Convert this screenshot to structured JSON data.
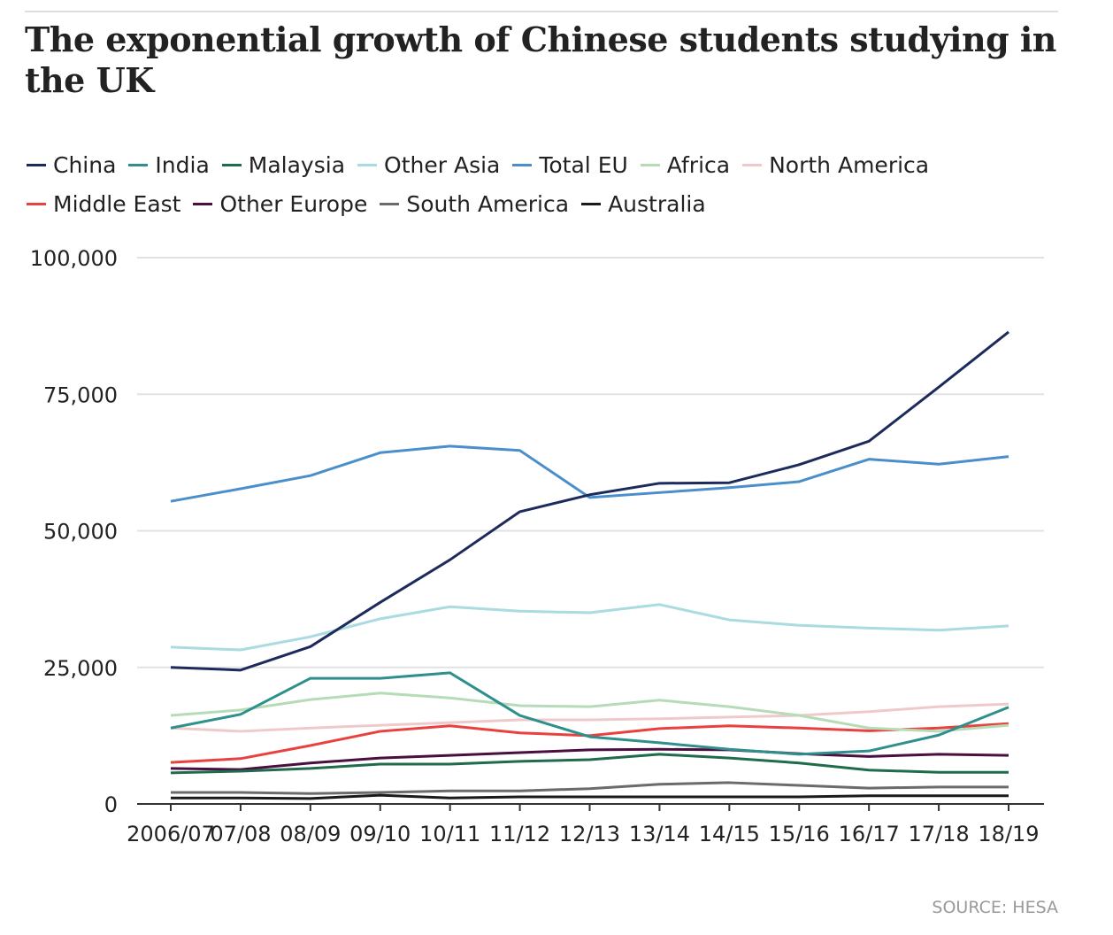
{
  "title": "The exponential growth of Chinese students studying in the UK",
  "source": "SOURCE: HESA",
  "chart_data": {
    "type": "line",
    "title": "The exponential growth of Chinese students studying in the UK",
    "xlabel": "",
    "ylabel": "",
    "categories": [
      "2006/07",
      "07/08",
      "08/09",
      "09/10",
      "10/11",
      "11/12",
      "12/13",
      "13/14",
      "14/15",
      "15/16",
      "16/17",
      "17/18",
      "18/19"
    ],
    "ylim": [
      0,
      100000
    ],
    "yticks": [
      0,
      25000,
      50000,
      75000,
      100000
    ],
    "ytick_labels": [
      "0",
      "25,000",
      "50,000",
      "75,000",
      "100,000"
    ],
    "grid": true,
    "legend": "top",
    "series": [
      {
        "name": "China",
        "color": "#1c2b5c",
        "values": [
          25000,
          24500,
          28800,
          36900,
          44700,
          53500,
          56600,
          58700,
          58800,
          62100,
          66400,
          76300,
          86400
        ]
      },
      {
        "name": "India",
        "color": "#2e8f8c",
        "values": [
          13900,
          16400,
          23000,
          23000,
          24000,
          16200,
          12300,
          11200,
          10000,
          9100,
          9700,
          12600,
          17700
        ]
      },
      {
        "name": "Malaysia",
        "color": "#1f6b4b",
        "values": [
          5700,
          6000,
          6500,
          7300,
          7300,
          7800,
          8100,
          9100,
          8400,
          7500,
          6200,
          5800,
          5800
        ]
      },
      {
        "name": "Other Asia",
        "color": "#a9dbe0",
        "values": [
          28700,
          28200,
          30600,
          33900,
          36100,
          35300,
          35000,
          36500,
          33700,
          32700,
          32200,
          31800,
          32600
        ]
      },
      {
        "name": "Total EU",
        "color": "#4a8fcb",
        "values": [
          55400,
          57700,
          60100,
          64300,
          65500,
          64700,
          56100,
          57000,
          57900,
          59000,
          63100,
          62200,
          63600
        ]
      },
      {
        "name": "Africa",
        "color": "#b5dcb6",
        "values": [
          16200,
          17200,
          19100,
          20300,
          19400,
          18000,
          17800,
          19000,
          17800,
          16200,
          13900,
          13300,
          14400
        ]
      },
      {
        "name": "North America",
        "color": "#f0caca",
        "values": [
          13900,
          13300,
          13900,
          14400,
          14900,
          15400,
          15400,
          15600,
          15900,
          16200,
          16900,
          17800,
          18300
        ]
      },
      {
        "name": "Middle East",
        "color": "#e8413f",
        "values": [
          7600,
          8300,
          10700,
          13300,
          14300,
          13000,
          12500,
          13800,
          14300,
          13900,
          13400,
          13900,
          14700
        ]
      },
      {
        "name": "Other Europe",
        "color": "#4a0f40",
        "values": [
          6500,
          6300,
          7500,
          8400,
          8900,
          9400,
          9900,
          10000,
          9900,
          9200,
          8700,
          9100,
          8900
        ]
      },
      {
        "name": "South America",
        "color": "#6b6b6b",
        "values": [
          2100,
          2100,
          1900,
          2100,
          2400,
          2400,
          2800,
          3600,
          3900,
          3400,
          2900,
          3100,
          3100
        ]
      },
      {
        "name": "Australia",
        "color": "#1a1a1a",
        "values": [
          1100,
          1100,
          1000,
          1600,
          1100,
          1300,
          1300,
          1300,
          1300,
          1300,
          1500,
          1500,
          1500
        ]
      }
    ]
  }
}
